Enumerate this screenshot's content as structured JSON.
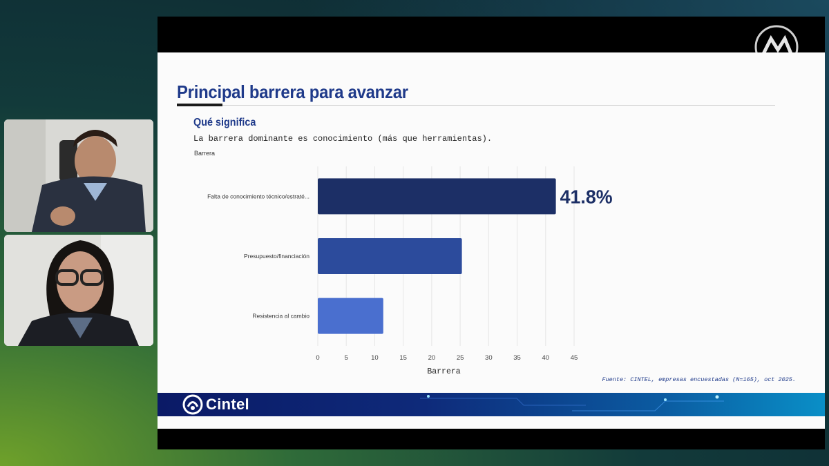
{
  "slide": {
    "title": "Principal barrera para avanzar",
    "subtitle": "Qué significa",
    "description": "La barrera dominante es conocimiento (más que herramientas).",
    "source": "Fuente: CINTEL, empresas encuestadas (N=165), oct 2025.",
    "footer_logo": "Cintel"
  },
  "chart_data": {
    "type": "bar",
    "orientation": "horizontal",
    "categories": [
      "Falta de conocimiento técnico/estraté...",
      "Presupuesto/financiación",
      "Resistencia al cambio"
    ],
    "values": [
      41.8,
      25.3,
      11.5
    ],
    "data_labels": [
      "41.8%",
      "",
      ""
    ],
    "title": "",
    "xlabel": "Barrera",
    "ylabel": "Barrera",
    "xlim": [
      0,
      45
    ],
    "xticks": [
      "0",
      "5",
      "10",
      "15",
      "20",
      "25",
      "30",
      "35",
      "40",
      "45"
    ],
    "grid": true,
    "colors": [
      "#1c2f66",
      "#2c4b9c",
      "#4a6fcf"
    ]
  }
}
